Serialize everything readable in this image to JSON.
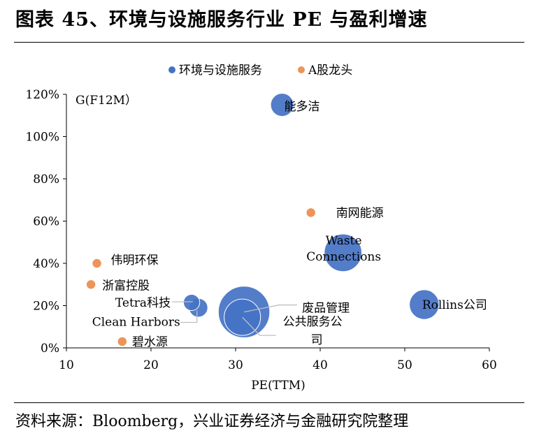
{
  "header": {
    "title": "图表 45、环境与设施服务行业 PE 与盈利增速"
  },
  "footer": {
    "source": "资料来源：Bloomberg，兴业证券经济与金融研究院整理"
  },
  "chart_data": {
    "type": "bubble",
    "title": "图表 45、环境与设施服务行业 PE 与盈利增速",
    "xlabel": "PE(TTM)",
    "ylabel": "G(F12M）",
    "xlim": [
      10,
      60
    ],
    "xticks": [
      10,
      20,
      30,
      40,
      50,
      60
    ],
    "xtick_labels": [
      "10",
      "20",
      "30",
      "40",
      "50",
      "60"
    ],
    "ylim": [
      0,
      1.2
    ],
    "yticks": [
      0,
      0.2,
      0.4,
      0.6,
      0.8,
      1.0,
      1.2
    ],
    "ytick_labels": [
      "0%",
      "20%",
      "40%",
      "60%",
      "80%",
      "100%",
      "120%"
    ],
    "grid": false,
    "legend_position": "top",
    "series": [
      {
        "name": "环境与设施服务",
        "color": "#4472c4",
        "points": [
          {
            "label": "能多洁",
            "x": 35.5,
            "y": 1.15,
            "size": 3
          },
          {
            "label": "Waste Connections",
            "x": 42.7,
            "y": 0.45,
            "size": 8
          },
          {
            "label": "Rollins公司",
            "x": 52.3,
            "y": 0.205,
            "size": 5
          },
          {
            "label": "Tetra科技",
            "x": 24.8,
            "y": 0.215,
            "size": 1.5
          },
          {
            "label": "Clean Harbors",
            "x": 25.6,
            "y": 0.19,
            "size": 2
          },
          {
            "label": "废品管理",
            "x": 31.0,
            "y": 0.17,
            "size": 15
          },
          {
            "label": "公共服务公司",
            "x": 30.8,
            "y": 0.145,
            "size": 7.5
          }
        ]
      },
      {
        "name": "A股龙头",
        "color": "#ed9459",
        "points": [
          {
            "label": "南网能源",
            "x": 38.9,
            "y": 0.64,
            "size": 0.5
          },
          {
            "label": "伟明环保",
            "x": 13.6,
            "y": 0.4,
            "size": 0.5
          },
          {
            "label": "浙富控股",
            "x": 12.9,
            "y": 0.3,
            "size": 0.5
          },
          {
            "label": "碧水源",
            "x": 16.6,
            "y": 0.03,
            "size": 0.5
          }
        ]
      }
    ]
  }
}
